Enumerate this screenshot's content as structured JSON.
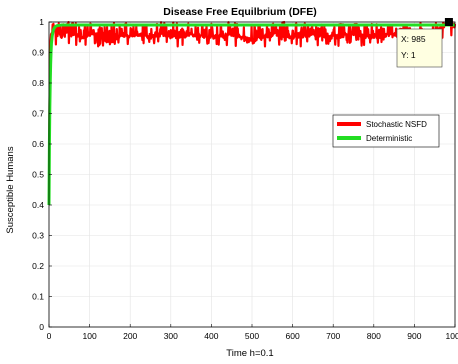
{
  "chart_data": {
    "type": "line",
    "title": "Disease Free Equilbrium (DFE)",
    "xlabel": "Time h=0.1",
    "ylabel": "Susceptible Humans",
    "xlim": [
      0,
      1000
    ],
    "ylim": [
      0,
      1
    ],
    "grid": true,
    "xticks": [
      "0",
      "100",
      "200",
      "300",
      "400",
      "500",
      "600",
      "700",
      "800",
      "900",
      "1000"
    ],
    "yticks": [
      "0",
      "0.1",
      "0.2",
      "0.3",
      "0.4",
      "0.5",
      "0.6",
      "0.7",
      "0.8",
      "0.9",
      "1"
    ],
    "legend_position": "right",
    "series": [
      {
        "name": "Stochastic NSFD",
        "color": "#ff0000",
        "x": [
          0,
          2,
          5,
          10,
          15,
          20,
          30,
          40,
          50,
          60,
          80,
          100,
          120,
          150,
          180,
          200,
          220,
          250,
          280,
          300,
          350,
          400,
          450,
          500,
          550,
          600,
          650,
          700,
          750,
          800,
          850,
          900,
          950,
          985,
          1000
        ],
        "y": [
          0.4,
          0.9,
          0.96,
          0.97,
          0.975,
          0.98,
          0.95,
          0.97,
          0.97,
          0.96,
          0.95,
          0.96,
          0.96,
          0.93,
          0.96,
          0.95,
          0.96,
          0.95,
          0.96,
          0.95,
          0.96,
          0.95,
          0.96,
          0.94,
          0.96,
          0.95,
          0.96,
          0.95,
          0.96,
          0.95,
          0.96,
          0.94,
          0.96,
          1,
          0.98
        ],
        "band_min": 0.92,
        "band_max": 1.0
      },
      {
        "name": "Deterministic",
        "color": "#22dd22",
        "x": [
          0,
          1,
          2,
          3,
          4,
          5,
          6,
          8,
          10,
          12,
          15,
          18,
          20,
          25,
          30,
          40,
          50,
          100,
          200,
          400,
          600,
          800,
          1000
        ],
        "y": [
          0.4,
          0.6,
          0.72,
          0.8,
          0.86,
          0.9,
          0.93,
          0.955,
          0.97,
          0.978,
          0.984,
          0.987,
          0.988,
          0.989,
          0.99,
          0.99,
          0.99,
          0.99,
          0.99,
          0.99,
          0.99,
          0.99,
          0.99
        ]
      }
    ],
    "datatip": {
      "x": 985,
      "y": 1,
      "x_text": "X: 985",
      "y_text": "Y: 1"
    }
  }
}
